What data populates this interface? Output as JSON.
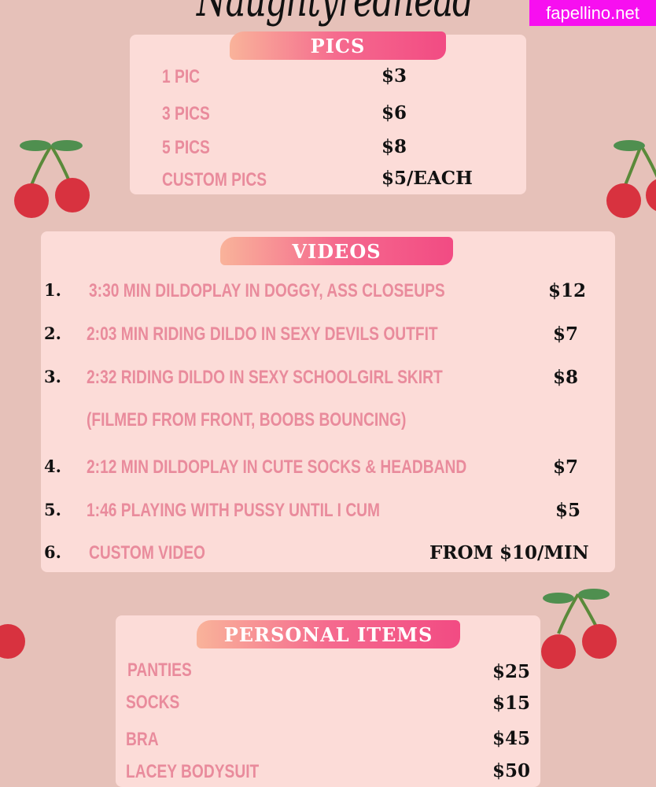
{
  "title": "Naughtyredhead",
  "watermark": "fapellino.net",
  "pics": {
    "heading": "PICS",
    "items": [
      {
        "label": "1 PIC",
        "price": "$3"
      },
      {
        "label": "3 PICS",
        "price": "$6"
      },
      {
        "label": "5 PICS",
        "price": "$8"
      },
      {
        "label": "CUSTOM PICS",
        "price": "$5/EACH"
      }
    ]
  },
  "videos": {
    "heading": "VIDEOS",
    "items": [
      {
        "num": "1.",
        "label": "3:30 MIN DILDOPLAY IN DOGGY, ASS CLOSEUPS",
        "price": "$12"
      },
      {
        "num": "2.",
        "label": "2:03 MIN RIDING DILDO IN SEXY DEVILS OUTFIT",
        "price": "$7"
      },
      {
        "num": "3.",
        "label": "2:32 RIDING DILDO IN SEXY SCHOOLGIRL SKIRT",
        "label2": "(FILMED FROM FRONT, BOOBS BOUNCING)",
        "price": "$8"
      },
      {
        "num": "4.",
        "label": "2:12 MIN DILDOPLAY IN CUTE SOCKS & HEADBAND",
        "price": "$7"
      },
      {
        "num": "5.",
        "label": "1:46 PLAYING WITH PUSSY UNTIL I CUM",
        "price": "$5"
      },
      {
        "num": "6.",
        "label": "CUSTOM VIDEO",
        "price": "FROM $10/MIN"
      }
    ]
  },
  "personal": {
    "heading": "PERSONAL ITEMS",
    "items": [
      {
        "label": "PANTIES",
        "price": "$25"
      },
      {
        "label": "SOCKS",
        "price": "$15"
      },
      {
        "label": "BRA",
        "price": "$45"
      },
      {
        "label": "LACEY BODYSUIT",
        "price": "$50"
      }
    ]
  },
  "colors": {
    "background": "#e6c1b9",
    "panel": "#fcdcd8",
    "item_text": "#e98b9c",
    "cherry": "#d8323f"
  }
}
